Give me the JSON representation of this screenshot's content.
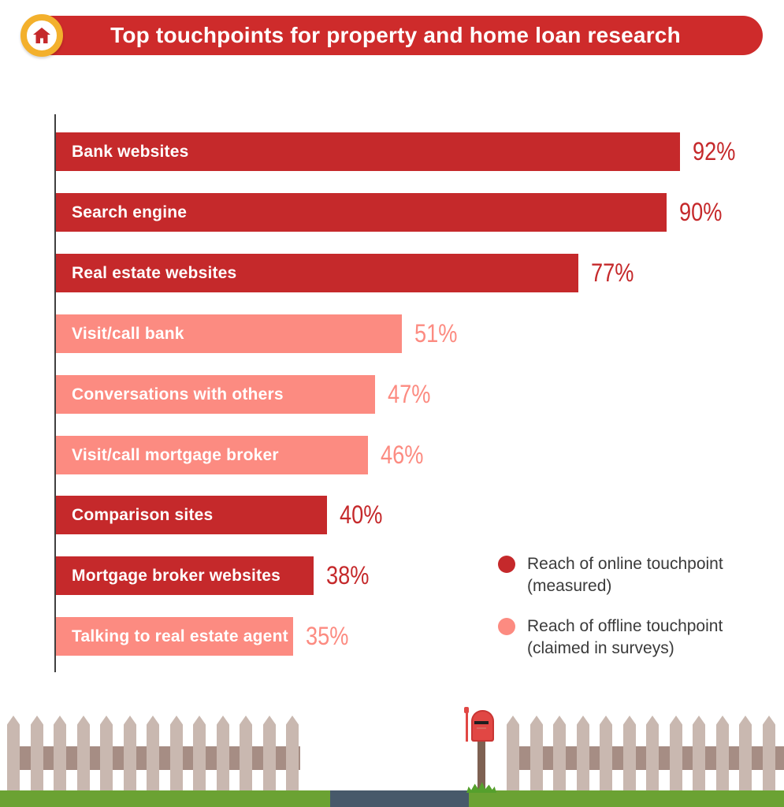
{
  "header": {
    "title": "Top touchpoints for property and home loan research",
    "icon": "home-icon"
  },
  "chart_data": {
    "type": "bar",
    "orientation": "horizontal",
    "title": "Top touchpoints for property and home loan research",
    "categories": [
      "Bank websites",
      "Search engine",
      "Real estate websites",
      "Visit/call bank",
      "Conversations with others",
      "Visit/call mortgage broker",
      "Comparison sites",
      "Mortgage broker websites",
      "Talking to real estate agent"
    ],
    "values": [
      92,
      90,
      77,
      51,
      47,
      46,
      40,
      38,
      35
    ],
    "value_labels": [
      "92%",
      "90%",
      "77%",
      "51%",
      "47%",
      "46%",
      "40%",
      "38%",
      "35%"
    ],
    "series": [
      "online",
      "online",
      "online",
      "offline",
      "offline",
      "offline",
      "online",
      "online",
      "offline"
    ],
    "xlim": [
      0,
      100
    ],
    "grid": false,
    "legend_position": "bottom-right",
    "legend": [
      {
        "series": "online",
        "label": "Reach of online touchpoint (measured)",
        "lines": [
          "Reach of online touchpoint",
          "(measured)"
        ],
        "color": "#C5292B"
      },
      {
        "series": "offline",
        "label": "Reach of offline touchpoint (claimed in surveys)",
        "lines": [
          "Reach of offline touchpoint",
          "(claimed in surveys)"
        ],
        "color": "#FC8B81"
      }
    ]
  },
  "colors": {
    "banner_red": "#CE2B2B",
    "bar_online": "#C5292B",
    "bar_offline": "#FC8B81",
    "axis": "#3F3F3F",
    "legend_text": "#3A3A3A",
    "ring_yellow": "#F3B02C",
    "house_red": "#C5292B",
    "grass": "#6BA233",
    "tuft": "#55A02C",
    "path_slate": "#47596A",
    "picket": "#C9B8B0",
    "rail": "#A68D84",
    "mailbox_red": "#E14744",
    "mailbox_dark": "#C93634",
    "slot": "#1F1F1F",
    "post_brown": "#7E6152"
  }
}
